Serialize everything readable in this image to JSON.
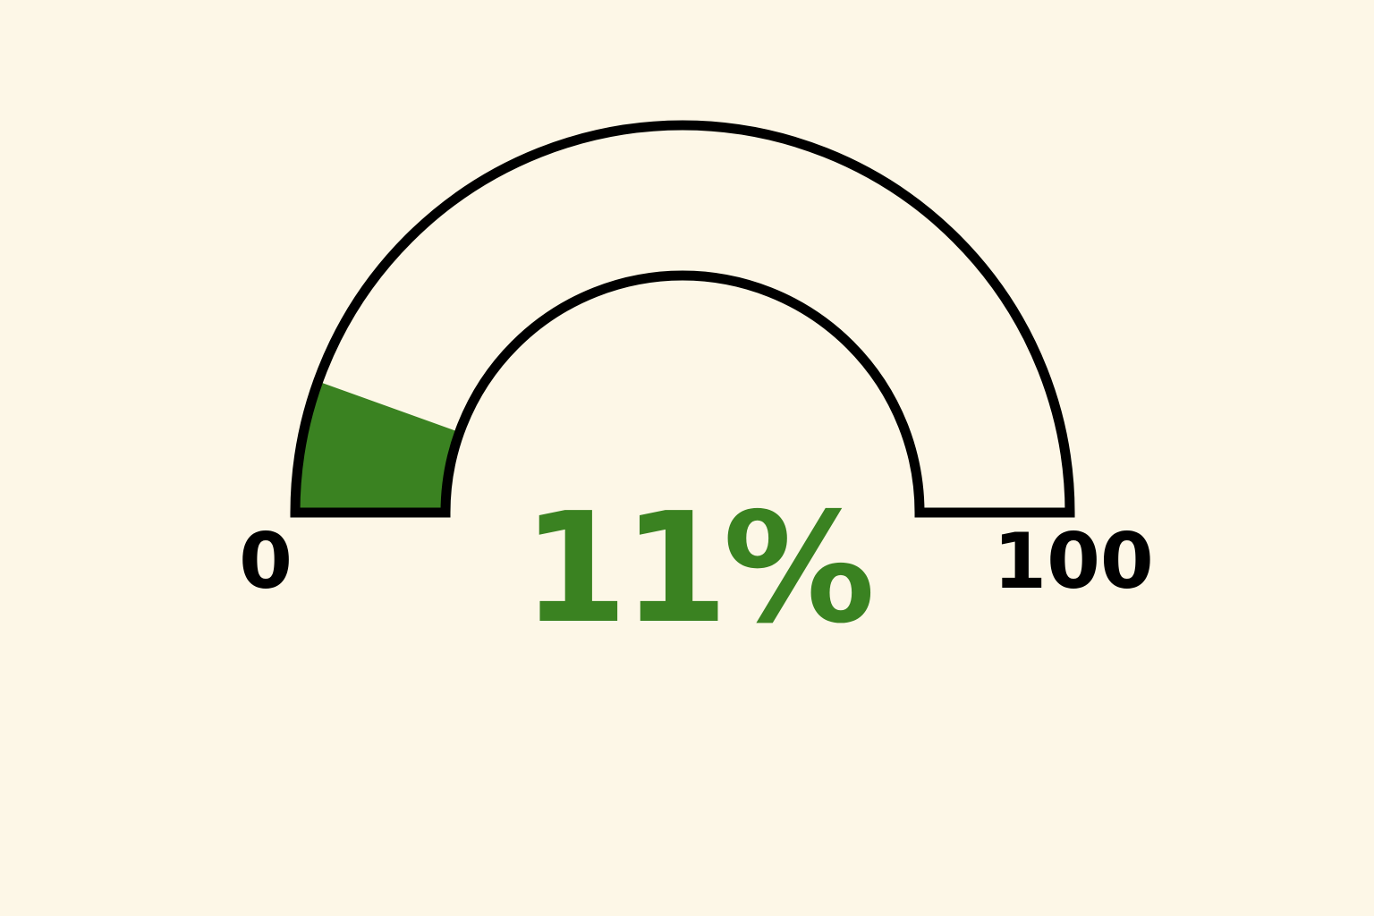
{
  "chart_data": {
    "type": "gauge",
    "value": 11,
    "min": 0,
    "max": 100,
    "value_label": "11%",
    "min_label": "0",
    "max_label": "100"
  },
  "colors": {
    "background": "#fdf7e7",
    "fill": "#3a8221",
    "track": "#fdf7e7",
    "outline": "#000000",
    "value_text": "#3a8221",
    "tick_text": "#000000"
  }
}
